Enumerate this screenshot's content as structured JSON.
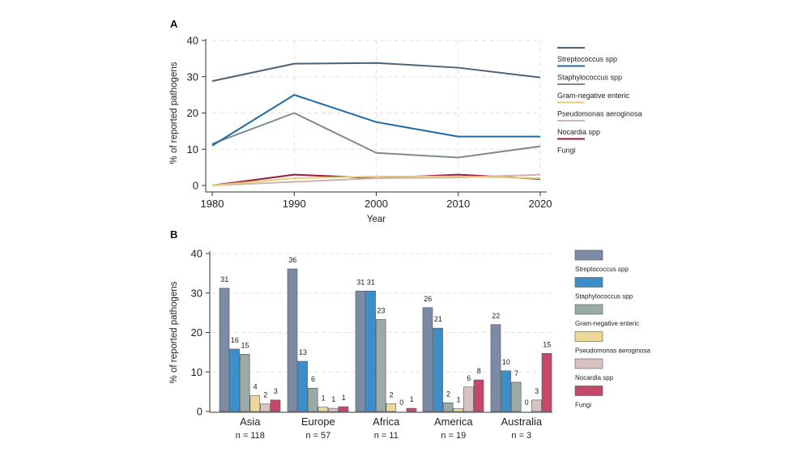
{
  "chart_data": [
    {
      "panel": "A",
      "type": "line",
      "xlabel": "Year",
      "ylabel": "% of reported pathogens",
      "x": [
        1980,
        1990,
        2000,
        2010,
        2020
      ],
      "xticks": [
        "1980",
        "1990",
        "2000",
        "2010",
        "2020"
      ],
      "yticks": [
        "0",
        "10",
        "20",
        "30",
        "40"
      ],
      "xlim": [
        1980,
        2020
      ],
      "ylim": [
        0,
        40
      ],
      "grid": true,
      "legend_position": "right",
      "series": [
        {
          "name": "Streptococcus spp",
          "color": "#4f6079",
          "values": [
            28.8,
            33.6,
            33.8,
            32.5,
            29.8
          ]
        },
        {
          "name": "Staphylococcus spp",
          "color": "#1f6aa5",
          "values": [
            11.0,
            25.0,
            17.5,
            13.5,
            13.5
          ]
        },
        {
          "name": "Gram-negative enteric",
          "color": "#7b8b89",
          "values": [
            11.5,
            20.0,
            9.0,
            7.7,
            10.8
          ]
        },
        {
          "name": "Pseudomonas aeroginosa",
          "color": "#e6cf7a",
          "values": [
            0.0,
            2.0,
            2.5,
            2.5,
            2.0
          ]
        },
        {
          "name": "Nocardia spp",
          "color": "#cfb3b3",
          "values": [
            0.0,
            1.0,
            2.0,
            2.2,
            3.0
          ]
        },
        {
          "name": "Fungi",
          "color": "#9b1b3c",
          "values": [
            0.0,
            3.0,
            2.0,
            3.0,
            1.8
          ]
        }
      ]
    },
    {
      "panel": "B",
      "type": "bar",
      "ylabel": "% of reported pathogens",
      "categories": [
        "Asia",
        "Europe",
        "Africa",
        "America",
        "Australia"
      ],
      "sample_sizes": [
        "n = 118",
        "n = 57",
        "n = 11",
        "n = 19",
        "n = 3"
      ],
      "yticks": [
        "0",
        "10",
        "20",
        "30",
        "40"
      ],
      "ylim": [
        0,
        40
      ],
      "grid": true,
      "legend_position": "right",
      "series": [
        {
          "name": "Streptococcus spp",
          "color": "#7b8aa5",
          "values": [
            31.2,
            36.1,
            30.5,
            26.3,
            22.0
          ],
          "labels": [
            "31",
            "36",
            "31",
            "26",
            "22"
          ]
        },
        {
          "name": "Staphylococcus spp",
          "color": "#3d8dc8",
          "values": [
            15.8,
            12.7,
            30.5,
            21.1,
            10.3
          ],
          "labels": [
            "16",
            "13",
            "31",
            "21",
            "10"
          ]
        },
        {
          "name": "Gram-negative enteric",
          "color": "#9aaba7",
          "values": [
            14.5,
            5.9,
            23.3,
            2.2,
            7.4
          ],
          "labels": [
            "15",
            "6",
            "23",
            "2",
            "7"
          ]
        },
        {
          "name": "Pseudomonas aeroginosa",
          "color": "#ecd99a",
          "values": [
            4.0,
            1.1,
            2.0,
            0.7,
            0.0
          ],
          "labels": [
            "4",
            "1",
            "2",
            "1",
            "0"
          ]
        },
        {
          "name": "Nocardia spp",
          "color": "#d9c2c2",
          "values": [
            1.9,
            0.8,
            0.0,
            6.2,
            2.9
          ],
          "labels": [
            "2",
            "1",
            "0",
            "6",
            "3"
          ]
        },
        {
          "name": "Fungi",
          "color": "#c5486a",
          "values": [
            2.9,
            1.2,
            0.8,
            8.0,
            14.7
          ],
          "labels": [
            "3",
            "1",
            "1",
            "8",
            "15"
          ]
        }
      ]
    }
  ]
}
